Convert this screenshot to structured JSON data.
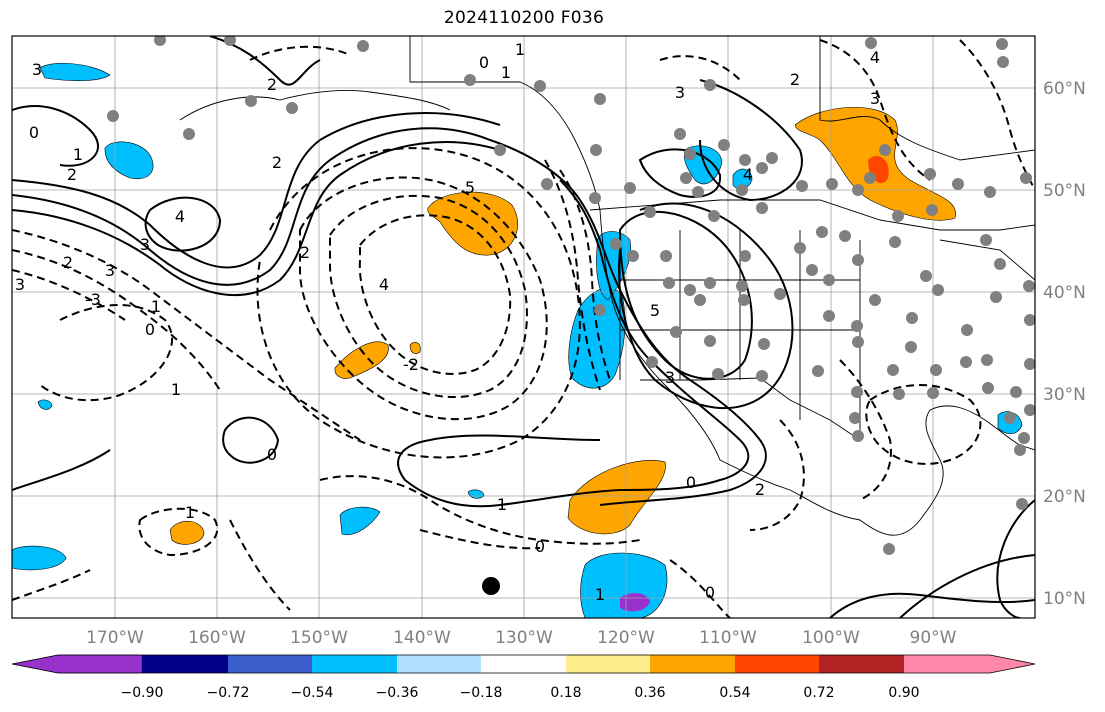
{
  "title": "2024110200 F036",
  "map": {
    "lon_labels": [
      "170°W",
      "160°W",
      "150°W",
      "140°W",
      "130°W",
      "120°W",
      "110°W",
      "100°W",
      "90°W"
    ],
    "lat_labels": [
      "60°N",
      "50°N",
      "40°N",
      "30°N",
      "20°N",
      "10°N"
    ],
    "contour_labels": [
      "3",
      "1",
      "0",
      "2",
      "3",
      "4",
      "3",
      "2",
      "1",
      "0",
      "-3",
      "3",
      "1",
      "2",
      "4",
      "5",
      "2",
      "1",
      "4",
      "3",
      "2",
      "-2",
      "0",
      "1",
      "1",
      "0",
      "0",
      "2",
      "0",
      "1",
      "3",
      "5",
      "4",
      "3",
      "0",
      "2",
      "1",
      "1"
    ],
    "colors": {
      "positive_orange": "#ffa500",
      "positive_red": "#ff4500",
      "negative_blue": "#00bfff",
      "negative_purple": "#9932cc",
      "station_dot": "#808080",
      "contour": "#000000",
      "grid": "#a0a0a0"
    }
  },
  "colorbar": {
    "ticks": [
      "−0.90",
      "−0.72",
      "−0.54",
      "−0.36",
      "−0.18",
      "0.18",
      "0.36",
      "0.54",
      "0.72",
      "0.90"
    ],
    "colors": [
      "#9932cc",
      "#00008b",
      "#3a5ecc",
      "#00bfff",
      "#b0e2ff",
      "#ffffff",
      "#ffec8b",
      "#ffa500",
      "#ff4500",
      "#b22222",
      "#ff88aa"
    ]
  }
}
